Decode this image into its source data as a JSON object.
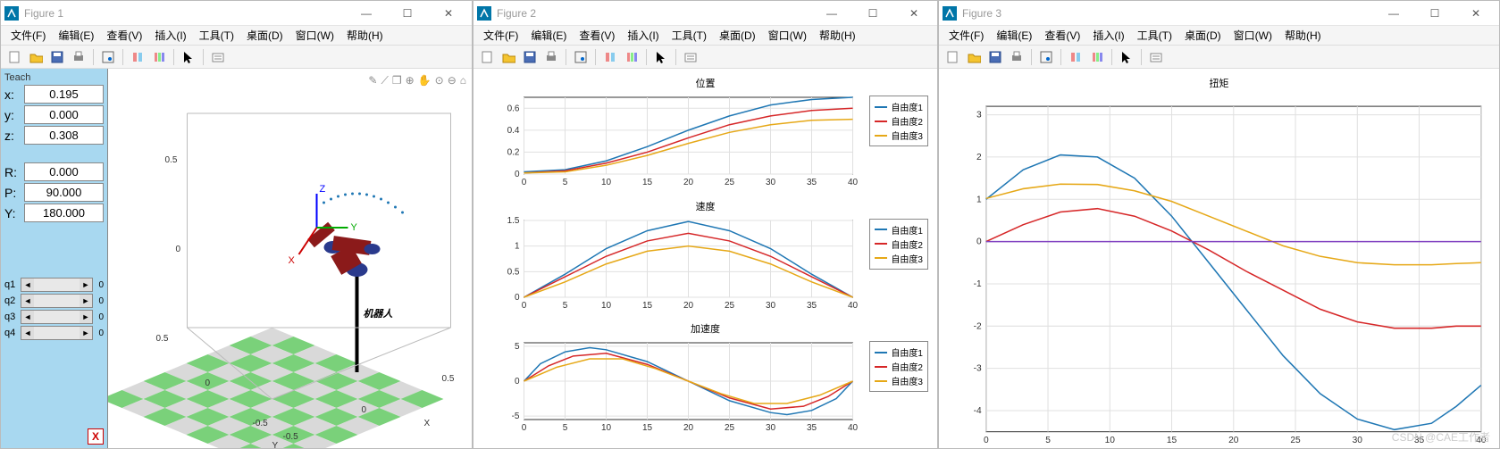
{
  "watermark": "CSDN @CAE工作者",
  "menus": [
    "文件(F)",
    "编辑(E)",
    "查看(V)",
    "插入(I)",
    "工具(T)",
    "桌面(D)",
    "窗口(W)",
    "帮助(H)"
  ],
  "windowControls": {
    "min": "—",
    "max": "☐",
    "close": "✕"
  },
  "toolbar": {
    "icons": [
      "new",
      "open",
      "save",
      "print",
      "sep",
      "datacursor",
      "sep",
      "linkplot",
      "colorbar",
      "sep",
      "pointer",
      "sep",
      "edit"
    ]
  },
  "fig1": {
    "title": "Figure 1",
    "teach": {
      "title": "Teach",
      "xlabel": "x:",
      "xval": "0.195",
      "ylabel": "y:",
      "yval": "0.000",
      "zlabel": "z:",
      "zval": "0.308",
      "rlabel": "R:",
      "rval": "0.000",
      "plabel": "P:",
      "pval": "90.000",
      "ywlabel": "Y:",
      "ywval": "180.000",
      "joints": [
        {
          "label": "q1",
          "val": "0"
        },
        {
          "label": "q2",
          "val": "0"
        },
        {
          "label": "q3",
          "val": "0"
        },
        {
          "label": "q4",
          "val": "0"
        }
      ],
      "close": "X"
    },
    "scene": {
      "robot_label": "机器人",
      "axis_labels": {
        "x": "X",
        "y": "Y",
        "z": "Z"
      },
      "frame_labels": {
        "x": "X",
        "y": "Y",
        "z": "Z"
      },
      "ticks_x": [
        "0.5",
        "0",
        "-0.5"
      ],
      "ticks_y": [
        "-0.5",
        "0",
        "0.5"
      ],
      "ticks_z": [
        "0",
        "0.5"
      ],
      "colors": {
        "robot_body": "#8b1a1a",
        "robot_joint": "#2a3a8c",
        "floor1": "#7ad17a",
        "floor2": "#d9d9d9",
        "traj": "#1f77b4"
      },
      "overlay_icons": [
        "✎",
        "⟋",
        "❐",
        "⊕",
        "✋",
        "⊙",
        "⊖",
        "⌂"
      ]
    }
  },
  "fig2": {
    "title": "Figure 2",
    "subplots": [
      {
        "title": "位置",
        "xticks": [
          0,
          5,
          10,
          15,
          20,
          25,
          30,
          35,
          40
        ],
        "yticks": [
          0,
          0.2,
          0.4,
          0.6
        ],
        "ylim": [
          0,
          0.7
        ],
        "legend": [
          "自由度1",
          "自由度2",
          "自由度3"
        ],
        "colors": [
          "#1f77b4",
          "#d62728",
          "#e6a817"
        ],
        "series": [
          [
            [
              0,
              0.02
            ],
            [
              5,
              0.04
            ],
            [
              10,
              0.12
            ],
            [
              15,
              0.25
            ],
            [
              20,
              0.4
            ],
            [
              25,
              0.53
            ],
            [
              30,
              0.63
            ],
            [
              35,
              0.68
            ],
            [
              40,
              0.7
            ]
          ],
          [
            [
              0,
              0.01
            ],
            [
              5,
              0.03
            ],
            [
              10,
              0.1
            ],
            [
              15,
              0.2
            ],
            [
              20,
              0.33
            ],
            [
              25,
              0.45
            ],
            [
              30,
              0.53
            ],
            [
              35,
              0.58
            ],
            [
              40,
              0.6
            ]
          ],
          [
            [
              0,
              0.01
            ],
            [
              5,
              0.02
            ],
            [
              10,
              0.08
            ],
            [
              15,
              0.17
            ],
            [
              20,
              0.28
            ],
            [
              25,
              0.38
            ],
            [
              30,
              0.45
            ],
            [
              35,
              0.49
            ],
            [
              40,
              0.5
            ]
          ]
        ]
      },
      {
        "title": "速度",
        "xticks": [
          0,
          5,
          10,
          15,
          20,
          25,
          30,
          35,
          40
        ],
        "yticks": [
          0,
          0.5,
          1,
          1.5
        ],
        "ylim": [
          0,
          1.5
        ],
        "legend": [
          "自由度1",
          "自由度2",
          "自由度3"
        ],
        "colors": [
          "#1f77b4",
          "#d62728",
          "#e6a817"
        ],
        "series": [
          [
            [
              0,
              0.0
            ],
            [
              5,
              0.45
            ],
            [
              10,
              0.95
            ],
            [
              15,
              1.3
            ],
            [
              20,
              1.48
            ],
            [
              25,
              1.3
            ],
            [
              30,
              0.95
            ],
            [
              35,
              0.45
            ],
            [
              40,
              0.0
            ]
          ],
          [
            [
              0,
              0.0
            ],
            [
              5,
              0.4
            ],
            [
              10,
              0.8
            ],
            [
              15,
              1.1
            ],
            [
              20,
              1.25
            ],
            [
              25,
              1.1
            ],
            [
              30,
              0.8
            ],
            [
              35,
              0.4
            ],
            [
              40,
              0.0
            ]
          ],
          [
            [
              0,
              0.0
            ],
            [
              5,
              0.3
            ],
            [
              10,
              0.65
            ],
            [
              15,
              0.9
            ],
            [
              20,
              1.0
            ],
            [
              25,
              0.9
            ],
            [
              30,
              0.65
            ],
            [
              35,
              0.3
            ],
            [
              40,
              0.0
            ]
          ]
        ]
      },
      {
        "title": "加速度",
        "xticks": [
          0,
          5,
          10,
          15,
          20,
          25,
          30,
          35,
          40
        ],
        "yticks": [
          -5,
          0,
          5
        ],
        "ylim": [
          -5.5,
          5.5
        ],
        "legend": [
          "自由度1",
          "自由度2",
          "自由度3"
        ],
        "colors": [
          "#1f77b4",
          "#d62728",
          "#e6a817"
        ],
        "series": [
          [
            [
              0,
              0.0
            ],
            [
              2,
              2.5
            ],
            [
              5,
              4.2
            ],
            [
              8,
              4.8
            ],
            [
              10,
              4.5
            ],
            [
              15,
              2.8
            ],
            [
              20,
              0.0
            ],
            [
              25,
              -2.8
            ],
            [
              30,
              -4.5
            ],
            [
              32,
              -4.8
            ],
            [
              35,
              -4.2
            ],
            [
              38,
              -2.5
            ],
            [
              40,
              0.0
            ]
          ],
          [
            [
              0,
              0.0
            ],
            [
              3,
              2.2
            ],
            [
              6,
              3.6
            ],
            [
              10,
              4.0
            ],
            [
              15,
              2.4
            ],
            [
              20,
              0.0
            ],
            [
              25,
              -2.4
            ],
            [
              30,
              -4.0
            ],
            [
              34,
              -3.6
            ],
            [
              37,
              -2.2
            ],
            [
              40,
              0.0
            ]
          ],
          [
            [
              0,
              0.0
            ],
            [
              4,
              2.0
            ],
            [
              8,
              3.2
            ],
            [
              12,
              3.2
            ],
            [
              16,
              1.8
            ],
            [
              20,
              0.0
            ],
            [
              24,
              -1.8
            ],
            [
              28,
              -3.2
            ],
            [
              32,
              -3.2
            ],
            [
              36,
              -2.0
            ],
            [
              40,
              0.0
            ]
          ]
        ]
      }
    ]
  },
  "fig3": {
    "title": "Figure 3",
    "plot": {
      "title": "扭矩",
      "xticks": [
        0,
        5,
        10,
        15,
        20,
        25,
        30,
        35,
        40
      ],
      "yticks": [
        -4,
        -3,
        -2,
        -1,
        0,
        1,
        2,
        3
      ],
      "xlim": [
        0,
        40
      ],
      "ylim": [
        -4.5,
        3.2
      ],
      "colors": [
        "#1f77b4",
        "#d62728",
        "#e6a817",
        "#8040c0"
      ],
      "series": [
        [
          [
            0,
            1.0
          ],
          [
            3,
            1.7
          ],
          [
            6,
            2.05
          ],
          [
            9,
            2.0
          ],
          [
            12,
            1.5
          ],
          [
            15,
            0.6
          ],
          [
            18,
            -0.5
          ],
          [
            21,
            -1.6
          ],
          [
            24,
            -2.7
          ],
          [
            27,
            -3.6
          ],
          [
            30,
            -4.2
          ],
          [
            33,
            -4.45
          ],
          [
            36,
            -4.3
          ],
          [
            38,
            -3.9
          ],
          [
            40,
            -3.4
          ]
        ],
        [
          [
            0,
            0.0
          ],
          [
            3,
            0.4
          ],
          [
            6,
            0.7
          ],
          [
            9,
            0.78
          ],
          [
            12,
            0.6
          ],
          [
            15,
            0.25
          ],
          [
            18,
            -0.2
          ],
          [
            21,
            -0.7
          ],
          [
            24,
            -1.15
          ],
          [
            27,
            -1.6
          ],
          [
            30,
            -1.9
          ],
          [
            33,
            -2.05
          ],
          [
            36,
            -2.05
          ],
          [
            38,
            -2.0
          ],
          [
            40,
            -2.0
          ]
        ],
        [
          [
            0,
            1.02
          ],
          [
            3,
            1.25
          ],
          [
            6,
            1.36
          ],
          [
            9,
            1.35
          ],
          [
            12,
            1.2
          ],
          [
            15,
            0.95
          ],
          [
            18,
            0.6
          ],
          [
            21,
            0.25
          ],
          [
            24,
            -0.1
          ],
          [
            27,
            -0.35
          ],
          [
            30,
            -0.5
          ],
          [
            33,
            -0.55
          ],
          [
            36,
            -0.55
          ],
          [
            38,
            -0.52
          ],
          [
            40,
            -0.5
          ]
        ],
        [
          [
            0,
            0.0
          ],
          [
            40,
            0.0
          ]
        ]
      ]
    }
  }
}
